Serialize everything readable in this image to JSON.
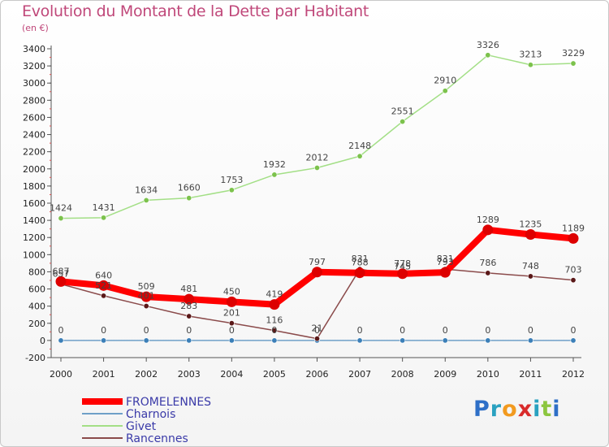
{
  "title": "Evolution du Montant de la Dette par Habitant",
  "subtitle": "(en €)",
  "logo": {
    "text": "Proxiti",
    "colors": [
      "#2e6fc7",
      "#2aa1c0",
      "#f29a1f",
      "#d92b2b",
      "#2aa1c0",
      "#8cc63f",
      "#2e6fc7"
    ]
  },
  "chart_data": {
    "type": "line",
    "x": [
      "2000",
      "2001",
      "2002",
      "2003",
      "2004",
      "2005",
      "2006",
      "2007",
      "2008",
      "2009",
      "2010",
      "2011",
      "2012"
    ],
    "ylim": [
      -200,
      3400
    ],
    "yticks": [
      -200,
      0,
      200,
      400,
      600,
      800,
      1000,
      1200,
      1400,
      1600,
      1800,
      2000,
      2200,
      2400,
      2600,
      2800,
      3000,
      3200,
      3400
    ],
    "grid": false,
    "legend_position": "bottom-left",
    "series": [
      {
        "name": "FROMELENNES",
        "color": "#ff0000",
        "marker": "#dd0000",
        "values": [
          687,
          640,
          509,
          481,
          450,
          419,
          797,
          788,
          778,
          793,
          1289,
          1235,
          1189
        ],
        "labels": [
          "687",
          "640",
          "509",
          "481",
          "450",
          "419",
          "797",
          "788",
          "778",
          "793",
          "1289",
          "1235",
          "1189"
        ]
      },
      {
        "name": "Charnois",
        "color": "#6fa0c8",
        "marker": "#3b7fb8",
        "values": [
          0,
          0,
          0,
          0,
          0,
          0,
          0,
          0,
          0,
          0,
          0,
          0,
          0
        ],
        "labels": [
          "0",
          "0",
          "0",
          "0",
          "0",
          "0",
          "0",
          "0",
          "0",
          "0",
          "0",
          "0",
          "0"
        ]
      },
      {
        "name": "Givet",
        "color": "#a3df86",
        "marker": "#7cc24c",
        "values": [
          1424,
          1431,
          1634,
          1660,
          1753,
          1932,
          2012,
          2148,
          2551,
          2910,
          3326,
          3213,
          3229
        ],
        "labels": [
          "1424",
          "1431",
          "1634",
          "1660",
          "1753",
          "1932",
          "2012",
          "2148",
          "2551",
          "2910",
          "3326",
          "3213",
          "3229"
        ]
      },
      {
        "name": "Rancennes",
        "color": "#8b4b4b",
        "marker": "#5a1818",
        "values": [
          657,
          521,
          401,
          283,
          201,
          116,
          21,
          831,
          745,
          831,
          786,
          748,
          703
        ],
        "labels": [
          "657",
          "521",
          "401",
          "283",
          "201",
          "116",
          "21",
          "831",
          "745",
          "831",
          "786",
          "748",
          "703"
        ]
      }
    ]
  }
}
